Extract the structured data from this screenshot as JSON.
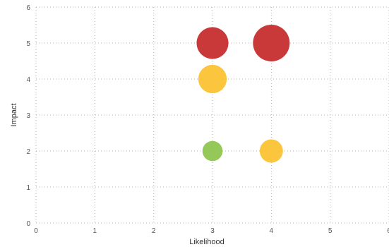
{
  "chart_data": {
    "type": "scatter",
    "title": "",
    "xlabel": "Likelihood",
    "ylabel": "Impact",
    "xlim": [
      0,
      6
    ],
    "ylim": [
      0,
      6
    ],
    "x_ticks": [
      "0",
      "1",
      "2",
      "3",
      "4",
      "5",
      "6"
    ],
    "y_ticks": [
      "0",
      "1",
      "2",
      "3",
      "4",
      "5",
      "6"
    ],
    "grid": true,
    "grid_style": "dotted",
    "bubble_size_meaning": "likelihood × impact (risk score)",
    "points": [
      {
        "x": 3,
        "y": 5,
        "size": 15,
        "color": "#c62828"
      },
      {
        "x": 4,
        "y": 5,
        "size": 20,
        "color": "#c62828"
      },
      {
        "x": 3,
        "y": 4,
        "size": 12,
        "color": "#fbc02d"
      },
      {
        "x": 3,
        "y": 2,
        "size": 6,
        "color": "#8bc34a"
      },
      {
        "x": 4,
        "y": 2,
        "size": 8,
        "color": "#fbc02d"
      }
    ]
  }
}
